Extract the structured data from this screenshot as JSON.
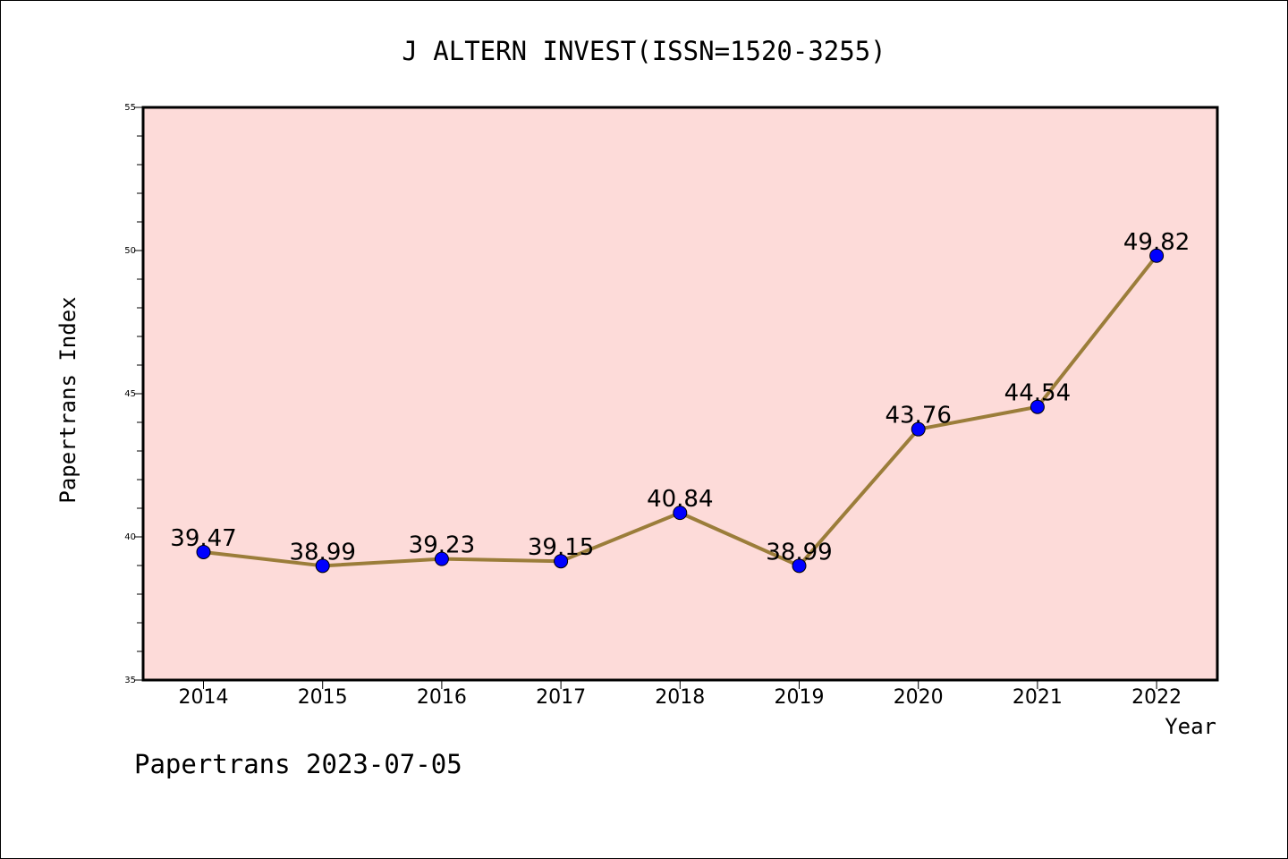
{
  "chart_data": {
    "type": "line",
    "title": "J ALTERN INVEST(ISSN=1520-3255)",
    "xlabel": "Year",
    "ylabel": "Papertrans Index",
    "categories": [
      "2014",
      "2015",
      "2016",
      "2017",
      "2018",
      "2019",
      "2020",
      "2021",
      "2022"
    ],
    "series": [
      {
        "values": [
          39.47,
          38.99,
          39.23,
          39.15,
          40.84,
          38.99,
          43.76,
          44.54,
          49.82
        ],
        "data_labels": [
          "39.47",
          "38.99",
          "39.23",
          "39.15",
          "40.84",
          "38.99",
          "43.76",
          "44.54",
          "49.82"
        ]
      }
    ],
    "ylim": [
      35,
      55
    ],
    "yticks": [
      "35",
      "40",
      "45",
      "50",
      "55"
    ],
    "grid": false,
    "plot_background": "#fddbd9",
    "line_color": "#9b7d3a",
    "marker_color": "#0000ff"
  },
  "footer": "Papertrans 2023-07-05"
}
